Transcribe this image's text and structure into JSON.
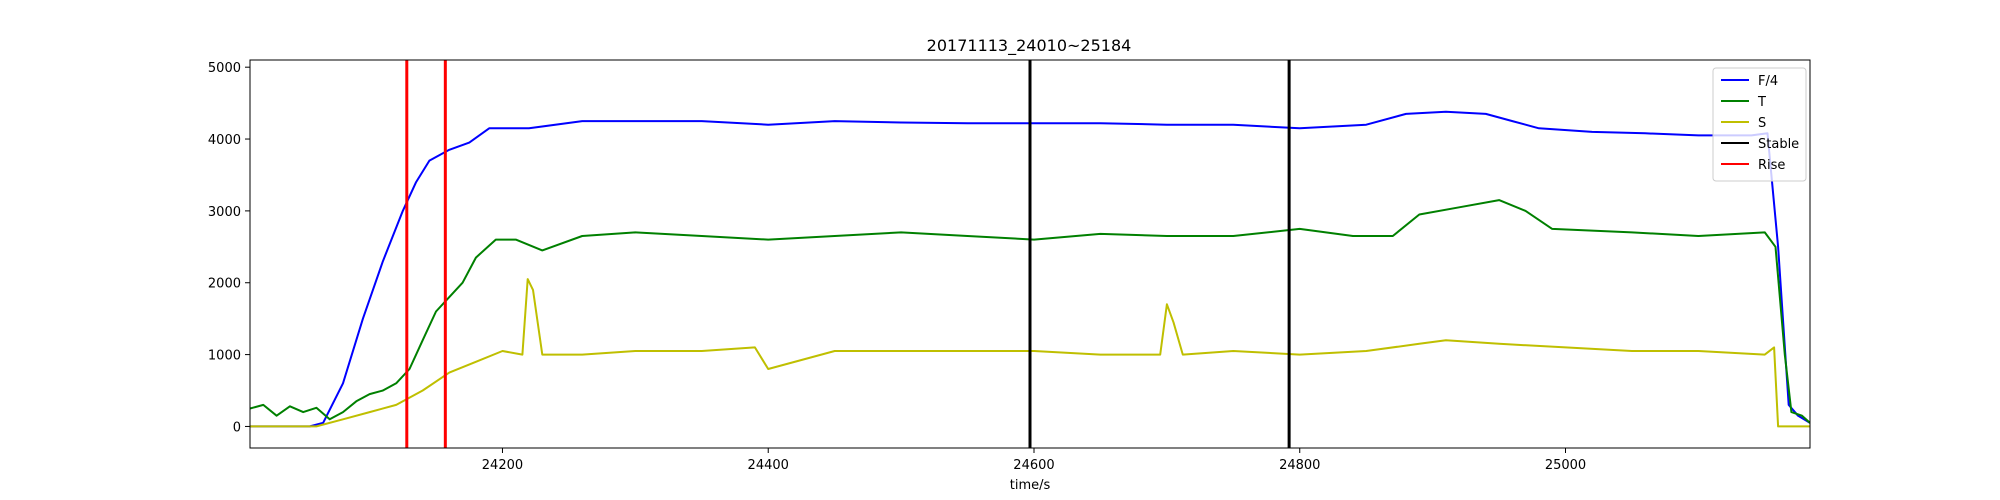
{
  "chart_data": {
    "type": "line",
    "title": "20171113_24010~25184",
    "xlabel": "time/s",
    "ylabel": "",
    "xlim": [
      24010,
      25184
    ],
    "ylim": [
      -300,
      5100
    ],
    "grid": false,
    "legend_position": "top-right",
    "x_ticks": [
      24200,
      24400,
      24600,
      24800,
      25000
    ],
    "x_tick_labels": [
      "24200",
      "24400",
      "24600",
      "24800",
      "25000"
    ],
    "y_ticks": [
      0,
      1000,
      2000,
      3000,
      4000,
      5000
    ],
    "y_tick_labels": [
      "0",
      "1000",
      "2000",
      "3000",
      "4000",
      "5000"
    ],
    "series": [
      {
        "name": "F/4",
        "color": "#0000ff",
        "points": [
          [
            24010,
            0
          ],
          [
            24055,
            0
          ],
          [
            24065,
            50
          ],
          [
            24080,
            600
          ],
          [
            24095,
            1500
          ],
          [
            24110,
            2300
          ],
          [
            24125,
            3000
          ],
          [
            24135,
            3400
          ],
          [
            24145,
            3700
          ],
          [
            24160,
            3850
          ],
          [
            24175,
            3950
          ],
          [
            24190,
            4150
          ],
          [
            24220,
            4150
          ],
          [
            24260,
            4250
          ],
          [
            24300,
            4250
          ],
          [
            24350,
            4250
          ],
          [
            24400,
            4200
          ],
          [
            24450,
            4250
          ],
          [
            24500,
            4230
          ],
          [
            24550,
            4220
          ],
          [
            24600,
            4220
          ],
          [
            24650,
            4220
          ],
          [
            24700,
            4200
          ],
          [
            24750,
            4200
          ],
          [
            24800,
            4150
          ],
          [
            24850,
            4200
          ],
          [
            24880,
            4350
          ],
          [
            24910,
            4380
          ],
          [
            24940,
            4350
          ],
          [
            24960,
            4250
          ],
          [
            24980,
            4150
          ],
          [
            25020,
            4100
          ],
          [
            25060,
            4080
          ],
          [
            25100,
            4050
          ],
          [
            25140,
            4050
          ],
          [
            25152,
            4080
          ],
          [
            25160,
            2500
          ],
          [
            25168,
            300
          ],
          [
            25175,
            150
          ],
          [
            25184,
            50
          ]
        ]
      },
      {
        "name": "T",
        "color": "#008000",
        "points": [
          [
            24010,
            250
          ],
          [
            24020,
            300
          ],
          [
            24030,
            150
          ],
          [
            24040,
            280
          ],
          [
            24050,
            200
          ],
          [
            24060,
            260
          ],
          [
            24070,
            100
          ],
          [
            24080,
            200
          ],
          [
            24090,
            350
          ],
          [
            24100,
            450
          ],
          [
            24110,
            500
          ],
          [
            24120,
            600
          ],
          [
            24130,
            800
          ],
          [
            24140,
            1200
          ],
          [
            24150,
            1600
          ],
          [
            24160,
            1800
          ],
          [
            24170,
            2000
          ],
          [
            24180,
            2350
          ],
          [
            24195,
            2600
          ],
          [
            24210,
            2600
          ],
          [
            24230,
            2450
          ],
          [
            24260,
            2650
          ],
          [
            24300,
            2700
          ],
          [
            24350,
            2650
          ],
          [
            24400,
            2600
          ],
          [
            24450,
            2650
          ],
          [
            24500,
            2700
          ],
          [
            24550,
            2650
          ],
          [
            24600,
            2600
          ],
          [
            24650,
            2680
          ],
          [
            24700,
            2650
          ],
          [
            24750,
            2650
          ],
          [
            24800,
            2750
          ],
          [
            24840,
            2650
          ],
          [
            24870,
            2650
          ],
          [
            24890,
            2950
          ],
          [
            24920,
            3050
          ],
          [
            24950,
            3150
          ],
          [
            24970,
            3000
          ],
          [
            24990,
            2750
          ],
          [
            25050,
            2700
          ],
          [
            25100,
            2650
          ],
          [
            25150,
            2700
          ],
          [
            25158,
            2500
          ],
          [
            25165,
            1000
          ],
          [
            25170,
            200
          ],
          [
            25178,
            150
          ],
          [
            25184,
            50
          ]
        ]
      },
      {
        "name": "S",
        "color": "#bfbf00",
        "points": [
          [
            24010,
            0
          ],
          [
            24060,
            0
          ],
          [
            24080,
            100
          ],
          [
            24100,
            200
          ],
          [
            24120,
            300
          ],
          [
            24140,
            500
          ],
          [
            24160,
            750
          ],
          [
            24180,
            900
          ],
          [
            24200,
            1050
          ],
          [
            24215,
            1000
          ],
          [
            24219,
            2050
          ],
          [
            24223,
            1900
          ],
          [
            24230,
            1000
          ],
          [
            24260,
            1000
          ],
          [
            24300,
            1050
          ],
          [
            24350,
            1050
          ],
          [
            24390,
            1100
          ],
          [
            24400,
            800
          ],
          [
            24450,
            1050
          ],
          [
            24500,
            1050
          ],
          [
            24550,
            1050
          ],
          [
            24600,
            1050
          ],
          [
            24650,
            1000
          ],
          [
            24695,
            1000
          ],
          [
            24700,
            1700
          ],
          [
            24705,
            1450
          ],
          [
            24712,
            1000
          ],
          [
            24750,
            1050
          ],
          [
            24800,
            1000
          ],
          [
            24850,
            1050
          ],
          [
            24890,
            1150
          ],
          [
            24910,
            1200
          ],
          [
            24950,
            1150
          ],
          [
            25000,
            1100
          ],
          [
            25050,
            1050
          ],
          [
            25100,
            1050
          ],
          [
            25150,
            1000
          ],
          [
            25157,
            1100
          ],
          [
            25160,
            0
          ],
          [
            25184,
            0
          ]
        ]
      }
    ],
    "vertical_lines": [
      {
        "name": "Stable",
        "color": "#000000",
        "x": [
          24597,
          24792
        ]
      },
      {
        "name": "Rise",
        "color": "#ff0000",
        "x": [
          24128,
          24157
        ]
      }
    ],
    "legend": [
      {
        "label": "F/4",
        "color": "#0000ff"
      },
      {
        "label": "T",
        "color": "#008000"
      },
      {
        "label": "S",
        "color": "#bfbf00"
      },
      {
        "label": "Stable",
        "color": "#000000"
      },
      {
        "label": "Rise",
        "color": "#ff0000"
      }
    ]
  }
}
